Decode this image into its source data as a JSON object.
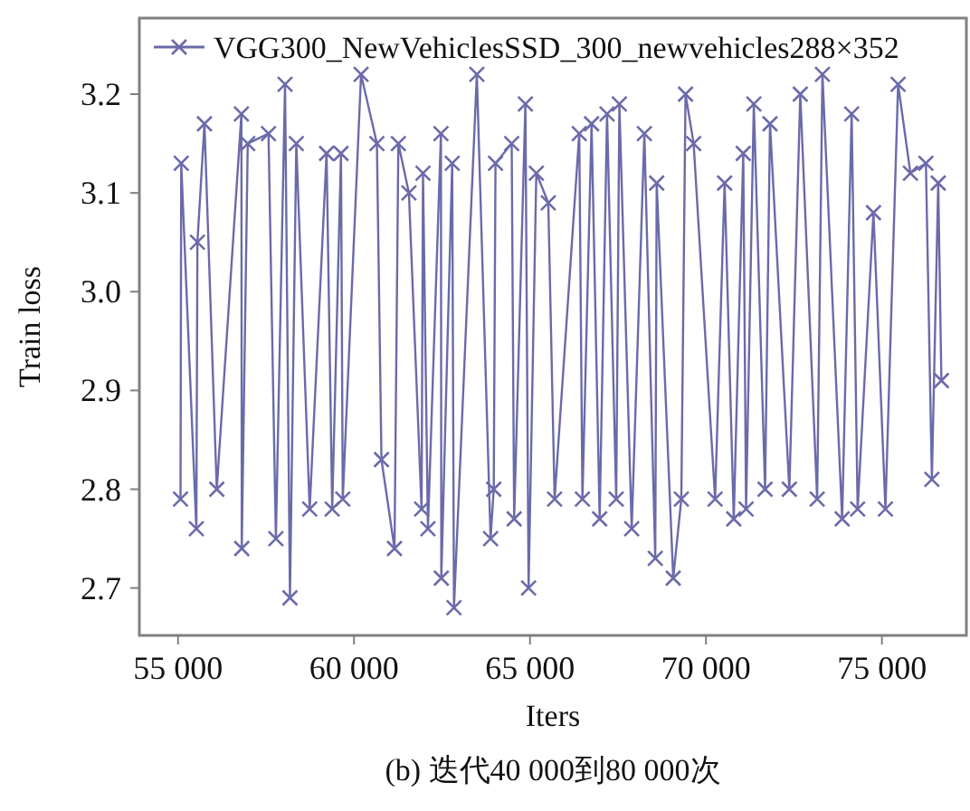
{
  "chart_data": {
    "type": "line",
    "xlabel": "Iters",
    "ylabel": "Train loss",
    "annotations": [
      "(b) 迭代40 000到80 000次"
    ],
    "xlim": [
      53900,
      77400
    ],
    "ylim": [
      2.652,
      3.277
    ],
    "xticks": [
      {
        "value": 55000,
        "label": "55 000"
      },
      {
        "value": 60000,
        "label": "60 000"
      },
      {
        "value": 65000,
        "label": "65 000"
      },
      {
        "value": 70000,
        "label": "70 000"
      },
      {
        "value": 75000,
        "label": "75 000"
      }
    ],
    "yticks": [
      2.7,
      2.8,
      2.9,
      {
        "value": 3.0,
        "label": "3.0"
      },
      3.1,
      3.2
    ],
    "grid": false,
    "legend": "top left",
    "marker": "cross",
    "line_style": "solid",
    "series": [
      {
        "name": "VGG300_NewVehiclesSSD_300_newvehicles288×352",
        "color": "#6b6aaa",
        "x": [
          55070,
          55090,
          55520,
          55550,
          55750,
          56100,
          56800,
          56810,
          56980,
          57570,
          57780,
          58040,
          58180,
          58360,
          58740,
          59220,
          59380,
          59630,
          59680,
          60200,
          60650,
          60780,
          61150,
          61260,
          61560,
          61920,
          61960,
          62100,
          62470,
          62480,
          62790,
          62840,
          63490,
          63880,
          63970,
          64020,
          64480,
          64550,
          64870,
          64960,
          65180,
          65520,
          65700,
          66400,
          66490,
          66750,
          66980,
          67190,
          67450,
          67540,
          67890,
          68250,
          68560,
          68600,
          69070,
          69300,
          69420,
          69650,
          70260,
          70530,
          70790,
          71060,
          71140,
          71360,
          71680,
          71820,
          72370,
          72680,
          73160,
          73310,
          73870,
          74140,
          74310,
          74760,
          75100,
          75460,
          75810,
          76250,
          76420,
          76600,
          76690
        ],
        "values": [
          2.79,
          3.13,
          2.76,
          3.05,
          3.17,
          2.8,
          3.18,
          2.74,
          3.15,
          3.16,
          2.75,
          3.21,
          2.69,
          3.15,
          2.78,
          3.14,
          2.78,
          3.14,
          2.79,
          3.22,
          3.15,
          2.83,
          2.74,
          3.15,
          3.1,
          2.78,
          3.12,
          2.76,
          3.16,
          2.71,
          3.13,
          2.68,
          3.22,
          2.75,
          2.8,
          3.13,
          3.15,
          2.77,
          3.19,
          2.7,
          3.12,
          3.09,
          2.79,
          3.16,
          2.79,
          3.17,
          2.77,
          3.18,
          2.79,
          3.19,
          2.76,
          3.16,
          2.73,
          3.11,
          2.71,
          2.79,
          3.2,
          3.15,
          2.79,
          3.11,
          2.77,
          3.14,
          2.78,
          3.19,
          2.8,
          3.17,
          2.8,
          3.2,
          2.79,
          3.22,
          2.77,
          3.18,
          2.78,
          3.08,
          2.78,
          3.21,
          3.12,
          3.13,
          2.81,
          3.11,
          2.91
        ]
      }
    ]
  }
}
